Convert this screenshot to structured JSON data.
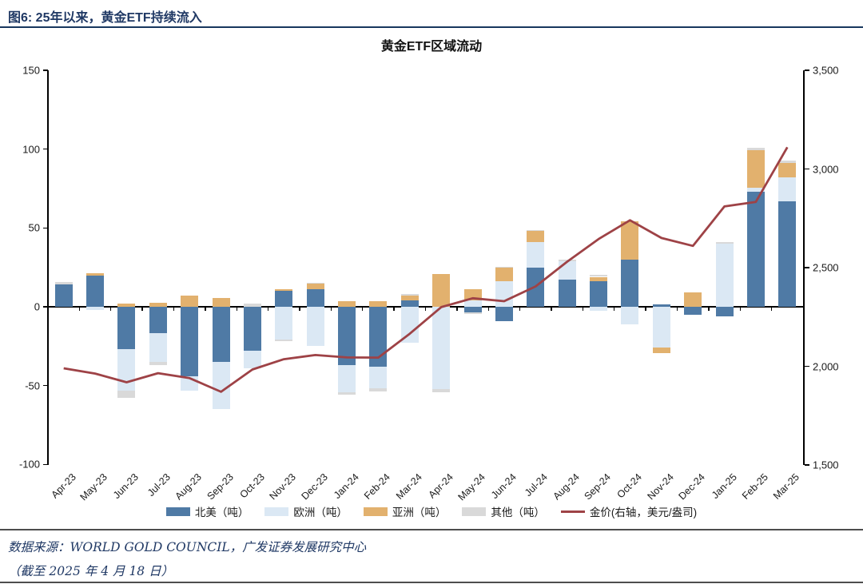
{
  "figure_header": {
    "text": "图6:  25年以来，黄金ETF持续流入"
  },
  "footer": {
    "source": "数据来源：WORLD GOLD COUNCIL，广发证券发展研究中心",
    "note": "（截至 2025 年 4 月 18 日）"
  },
  "chart_data": {
    "type": "bar",
    "subtype": "stacked-bar-with-line",
    "title": "黄金ETF区域流动",
    "categories": [
      "Apr-23",
      "May-23",
      "Jun-23",
      "Jul-23",
      "Aug-23",
      "Sep-23",
      "Oct-23",
      "Nov-23",
      "Dec-23",
      "Jan-24",
      "Feb-24",
      "Mar-24",
      "Apr-24",
      "May-24",
      "Jun-24",
      "Jul-24",
      "Aug-24",
      "Sep-24",
      "Oct-24",
      "Nov-24",
      "Dec-24",
      "Jan-25",
      "Feb-25",
      "Mar-25"
    ],
    "series": [
      {
        "name": "北美（吨）",
        "color": "#4f7aa5",
        "values": [
          14,
          20,
          -27,
          -16.5,
          -44,
          -35,
          -28,
          10,
          11,
          -37,
          -38,
          4,
          0,
          -3.5,
          -9,
          25,
          17,
          16,
          30,
          1.5,
          -5,
          -6,
          73,
          67
        ]
      },
      {
        "name": "欧洲（吨）",
        "color": "#dbe8f4",
        "values": [
          0,
          -2,
          -26,
          -18.5,
          -9,
          -30,
          -11,
          -21,
          -25,
          -17,
          -13.5,
          -23,
          -52,
          4,
          16,
          16,
          12,
          -2.5,
          -11,
          -26,
          0,
          40,
          2.5,
          15
        ]
      },
      {
        "name": "亚洲（吨）",
        "color": "#e2b16e",
        "values": [
          0,
          1.5,
          2,
          2.5,
          7,
          5.5,
          0,
          1,
          3.5,
          3.5,
          3.5,
          3,
          21,
          7,
          9,
          7,
          0,
          3,
          24,
          -3.5,
          9,
          0,
          24,
          9
        ]
      },
      {
        "name": "其他（吨）",
        "color": "#d9d9d9",
        "values": [
          1.5,
          0,
          -5,
          -2,
          0,
          0,
          2,
          -1,
          0.5,
          -2,
          -2,
          1,
          -2,
          -1,
          0.5,
          0.5,
          1,
          1.5,
          0,
          0,
          0,
          1,
          1.5,
          1.5
        ]
      }
    ],
    "line_series": {
      "name": "金价(右轴，美元/盎司)",
      "color": "#9e4246",
      "axis": "right",
      "values": [
        1990,
        1963,
        1919,
        1965,
        1940,
        1871,
        1984,
        2036,
        2057,
        2045,
        2044,
        2165,
        2300,
        2345,
        2330,
        2405,
        2530,
        2645,
        2740,
        2650,
        2610,
        2810,
        2833,
        3110
      ]
    },
    "left_axis": {
      "min": -100,
      "max": 150,
      "ticks": [
        "150",
        "100",
        "50",
        "0",
        "-50",
        "-100"
      ]
    },
    "right_axis": {
      "min": 1500,
      "max": 3500,
      "ticks": [
        "3,500",
        "3,000",
        "2,500",
        "2,000",
        "1,500"
      ]
    },
    "grid": "off",
    "legend_position": "bottom"
  }
}
